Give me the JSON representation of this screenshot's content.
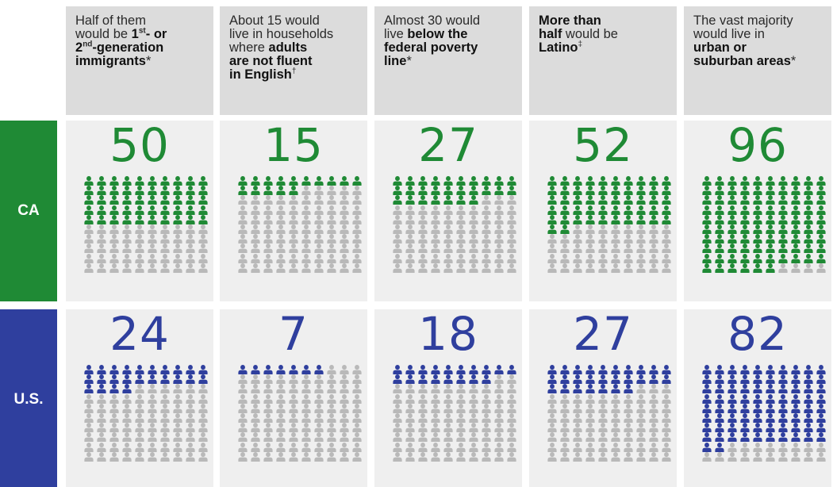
{
  "columns": [
    {
      "id": "immigrants",
      "header": [
        {
          "text": "Half of them",
          "bold": false
        },
        {
          "br": true
        },
        {
          "text": "would be ",
          "bold": false
        },
        {
          "text": "1",
          "bold": true
        },
        {
          "text": "st",
          "bold": true,
          "sup": true
        },
        {
          "text": "- or",
          "bold": true
        },
        {
          "br": true
        },
        {
          "text": "2",
          "bold": true
        },
        {
          "text": "nd",
          "bold": true,
          "sup": true
        },
        {
          "text": "-generation",
          "bold": true
        },
        {
          "br": true
        },
        {
          "text": "immigrants",
          "bold": true
        },
        {
          "text": "*",
          "bold": false
        }
      ]
    },
    {
      "id": "english",
      "header": [
        {
          "text": "About 15 would",
          "bold": false
        },
        {
          "br": true
        },
        {
          "text": "live in households",
          "bold": false
        },
        {
          "br": true
        },
        {
          "text": "where ",
          "bold": false
        },
        {
          "text": "adults",
          "bold": true
        },
        {
          "br": true
        },
        {
          "text": "are not fluent",
          "bold": true
        },
        {
          "br": true
        },
        {
          "text": "in English",
          "bold": true
        },
        {
          "text": "†",
          "bold": false,
          "sup": true
        }
      ]
    },
    {
      "id": "poverty",
      "header": [
        {
          "text": "Almost 30 would",
          "bold": false
        },
        {
          "br": true
        },
        {
          "text": "live ",
          "bold": false
        },
        {
          "text": "below the",
          "bold": true
        },
        {
          "br": true
        },
        {
          "text": "federal poverty",
          "bold": true
        },
        {
          "br": true
        },
        {
          "text": "line",
          "bold": true
        },
        {
          "text": "*",
          "bold": false
        }
      ]
    },
    {
      "id": "latino",
      "header": [
        {
          "text": "More than",
          "bold": true
        },
        {
          "br": true
        },
        {
          "text": "half",
          "bold": true
        },
        {
          "text": " would be",
          "bold": false
        },
        {
          "br": true
        },
        {
          "text": "Latino",
          "bold": true
        },
        {
          "text": "‡",
          "bold": false,
          "sup": true
        }
      ]
    },
    {
      "id": "urban",
      "header": [
        {
          "text": "The vast majority",
          "bold": false
        },
        {
          "br": true
        },
        {
          "text": "would live in",
          "bold": false
        },
        {
          "br": true
        },
        {
          "text": "urban or",
          "bold": true
        },
        {
          "br": true
        },
        {
          "text": "suburban areas",
          "bold": true
        },
        {
          "text": "*",
          "bold": false
        }
      ]
    }
  ],
  "rows": [
    {
      "id": "ca",
      "label": "CA",
      "color": "#1f8a35",
      "panel_bg": "#efefef",
      "number_color": "#1f8a35"
    },
    {
      "id": "us",
      "label": "U.S.",
      "color": "#2f3f9e",
      "panel_bg": "#efefef",
      "number_color": "#2f3f9e"
    }
  ],
  "inactive_icon_color": "#b9b9b9",
  "chart_data": {
    "type": "pictograph",
    "units_per_grid": 100,
    "categories": [
      "1st- or 2nd-generation immigrants",
      "adults are not fluent in English",
      "below the federal poverty line",
      "Latino",
      "urban or suburban areas"
    ],
    "series": [
      {
        "name": "CA",
        "display": [
          "50",
          "15",
          "27",
          "52",
          "96"
        ],
        "values": [
          50,
          15,
          27,
          52,
          96
        ]
      },
      {
        "name": "U.S.",
        "display": [
          "24",
          "7",
          "18",
          "27",
          "82"
        ],
        "values": [
          24,
          7,
          18,
          27,
          82
        ]
      }
    ]
  }
}
